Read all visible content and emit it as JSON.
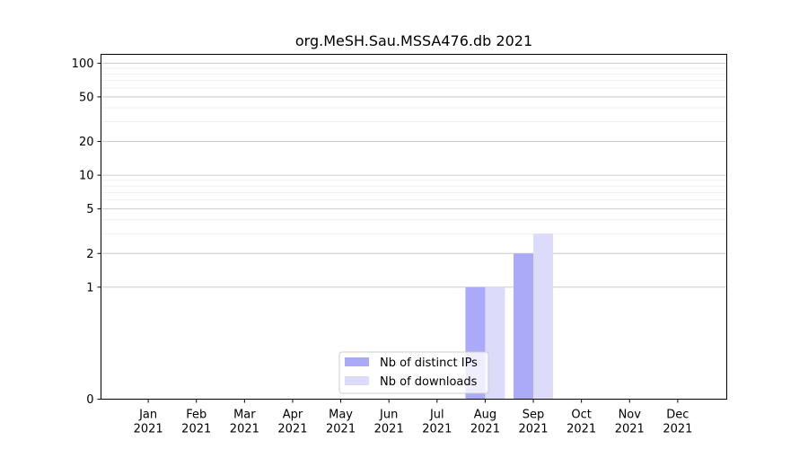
{
  "chart_data": {
    "type": "bar",
    "title": "org.MeSH.Sau.MSSA476.db 2021",
    "xlabel": "",
    "ylabel": "",
    "y_scale": "symlog",
    "ylim": [
      0,
      120
    ],
    "y_ticks": [
      0,
      1,
      2,
      5,
      10,
      20,
      50,
      100
    ],
    "y_tick_labels": [
      "0",
      "1",
      "2",
      "5",
      "10",
      "20",
      "50",
      "100"
    ],
    "grid": true,
    "legend_position": "lower-center",
    "categories": [
      {
        "month": "Jan",
        "year": "2021"
      },
      {
        "month": "Feb",
        "year": "2021"
      },
      {
        "month": "Mar",
        "year": "2021"
      },
      {
        "month": "Apr",
        "year": "2021"
      },
      {
        "month": "May",
        "year": "2021"
      },
      {
        "month": "Jun",
        "year": "2021"
      },
      {
        "month": "Jul",
        "year": "2021"
      },
      {
        "month": "Aug",
        "year": "2021"
      },
      {
        "month": "Sep",
        "year": "2021"
      },
      {
        "month": "Oct",
        "year": "2021"
      },
      {
        "month": "Nov",
        "year": "2021"
      },
      {
        "month": "Dec",
        "year": "2021"
      }
    ],
    "series": [
      {
        "name": "Nb of distinct IPs",
        "color": "#aaaaf8",
        "values": [
          0,
          0,
          0,
          0,
          0,
          0,
          0,
          1,
          2,
          0,
          0,
          0
        ]
      },
      {
        "name": "Nb of downloads",
        "color": "#dcdcfa",
        "values": [
          0,
          0,
          0,
          0,
          0,
          0,
          0,
          1,
          3,
          0,
          0,
          0
        ]
      }
    ]
  }
}
